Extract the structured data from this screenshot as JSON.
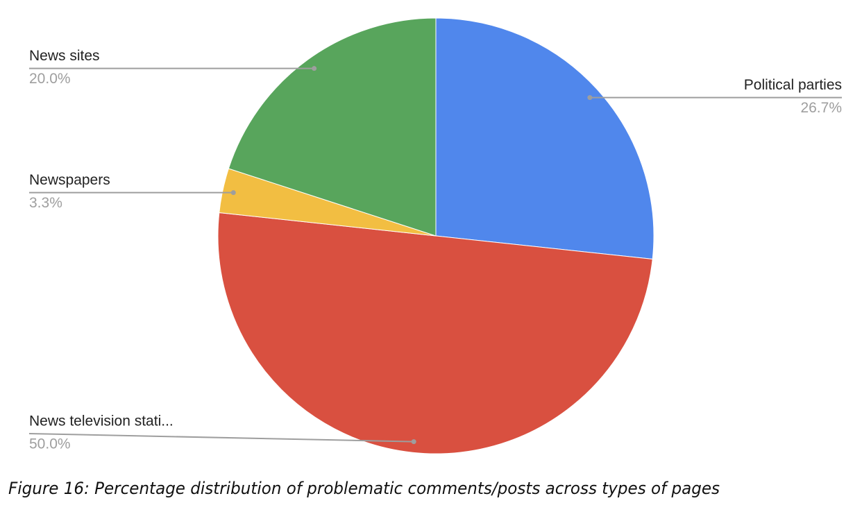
{
  "chart_data": {
    "type": "pie",
    "categories": [
      "Political parties",
      "News television stati...",
      "Newspapers",
      "News sites"
    ],
    "values": [
      26.7,
      50.0,
      3.3,
      20.0
    ],
    "value_labels": [
      "26.7%",
      "50.0%",
      "3.3%",
      "20.0%"
    ],
    "colors": [
      "#5087ec",
      "#d95040",
      "#f2be42",
      "#58a55c"
    ],
    "caption": "Figure 16: Percentage distribution of problematic comments/posts across types of pages"
  }
}
